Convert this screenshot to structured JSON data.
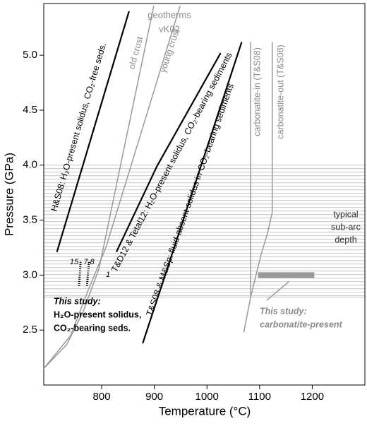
{
  "chart_data": {
    "type": "line",
    "xlabel": "Temperature (°C)",
    "ylabel": "Pressure (GPa)",
    "xlim": [
      690,
      1300
    ],
    "ylim": [
      2.0,
      5.47
    ],
    "xticks": [
      800,
      900,
      1000,
      1100,
      1200
    ],
    "yticks": [
      2.5,
      {
        "value": 3,
        "label": "3.0"
      },
      3.5,
      {
        "value": 4,
        "label": "4.0"
      },
      4.5,
      {
        "value": 5,
        "label": "5.0"
      }
    ],
    "band": {
      "range": [
        2.8,
        4.0
      ],
      "color": "#b5b5b5"
    },
    "series": [
      {
        "name": "H&S08: H₂O-present solidus, CO₂-free seds.",
        "color": "#000000",
        "x": [
          715,
          852
        ],
        "values": [
          3.21,
          5.4
        ]
      },
      {
        "name": "old crust",
        "color": "#999999",
        "x": [
          690,
          734,
          765,
          795,
          899
        ],
        "values": [
          2.15,
          2.37,
          2.67,
          3.06,
          5.45
        ]
      },
      {
        "name": "young crust",
        "color": "#999999",
        "x": [
          690,
          741,
          775,
          808,
          949
        ],
        "values": [
          2.15,
          2.45,
          2.87,
          3.25,
          5.45
        ]
      },
      {
        "name": "T&D12 & Tetal12: H₂O-present solidus, CO₂-bearing sediments",
        "color": "#000000",
        "x": [
          828,
          905,
          1026
        ],
        "values": [
          3.21,
          3.99,
          5.02
        ]
      },
      {
        "name": "T&S08 & M&Sp: fluid-absent solidus in CO₂-bearing sediments",
        "color": "#000000",
        "x": [
          878,
          1066
        ],
        "values": [
          2.38,
          5.12
        ]
      },
      {
        "name": "carbonatite-in (T&S08)",
        "color": "#999999",
        "x": [
          1083,
          1083
        ],
        "values": [
          5.12,
          2.8
        ]
      },
      {
        "name": "carbonatite-out (T&S08)",
        "color": "#999999",
        "x": [
          1124,
          1124,
          1115,
          1103,
          1083,
          1070
        ],
        "values": [
          5.12,
          3.57,
          3.38,
          3.19,
          2.8,
          2.48
        ]
      },
      {
        "name": "15",
        "color": "#000000",
        "style": "dotted",
        "x": [
          757,
          760
        ],
        "values": [
          2.9,
          3.12
        ]
      },
      {
        "name": "7.8",
        "color": "#000000",
        "style": "dotted",
        "x": [
          772,
          776
        ],
        "values": [
          2.9,
          3.12
        ]
      },
      {
        "color": "#999999",
        "style": "thick",
        "x": [
          1097,
          1204
        ],
        "values": [
          3.0,
          3.0
        ]
      }
    ],
    "annotations": [
      "geotherms",
      "vK02",
      "1",
      "typical",
      "sub-arc",
      "depth",
      "This study:",
      "H₂O-present solidus,",
      "CO₂-bearing seds.",
      "This study:",
      "carbonatite-present"
    ]
  }
}
